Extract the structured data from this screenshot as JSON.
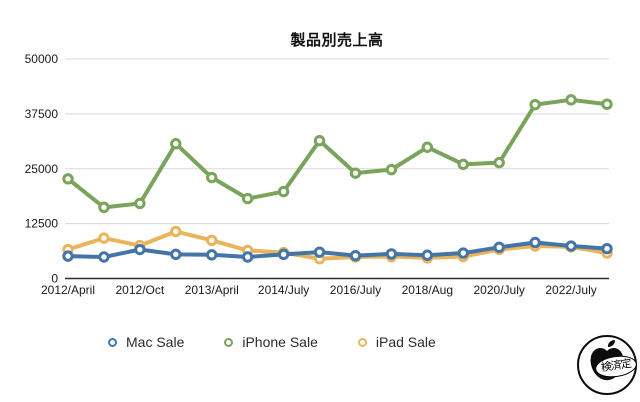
{
  "chart_data": {
    "type": "line",
    "title": "製品別売上高",
    "xlabel": "",
    "ylabel": "",
    "ylim": [
      0,
      50000
    ],
    "y_ticks": [
      0,
      12500,
      25000,
      37500,
      50000
    ],
    "grid": "horizontal",
    "legend_position": "bottom",
    "num_points": 16,
    "x_tick_labels": [
      "2012/April",
      "2012/Oct",
      "2013/April",
      "2014/July",
      "2016/July",
      "2018/Aug",
      "2020/July",
      "2022/July"
    ],
    "x_tick_point_indices": [
      0,
      2,
      4,
      6,
      8,
      10,
      12,
      14
    ],
    "series": [
      {
        "name": "Mac Sale",
        "color": "#4474a8",
        "values": [
          5100,
          4900,
          6600,
          5500,
          5400,
          4900,
          5500,
          6000,
          5200,
          5600,
          5300,
          5800,
          7100,
          8200,
          7400,
          6800
        ]
      },
      {
        "name": "iPhone Sale",
        "color": "#7aa35b",
        "values": [
          22700,
          16200,
          17100,
          30700,
          23000,
          18200,
          19800,
          31400,
          24000,
          24800,
          29900,
          26000,
          26400,
          39600,
          40700,
          39700
        ]
      },
      {
        "name": "iPad Sale",
        "color": "#e9b45a",
        "values": [
          6600,
          9200,
          7500,
          10700,
          8700,
          6400,
          5900,
          4500,
          4900,
          5000,
          4700,
          5000,
          6600,
          7400,
          7200,
          5800
        ]
      }
    ],
    "colors": {
      "gridline": "#d9d9d9",
      "axis_line": "#2a2a2a",
      "text": "#1a1a1a"
    }
  },
  "logo": {
    "badge_text": "検済定"
  }
}
